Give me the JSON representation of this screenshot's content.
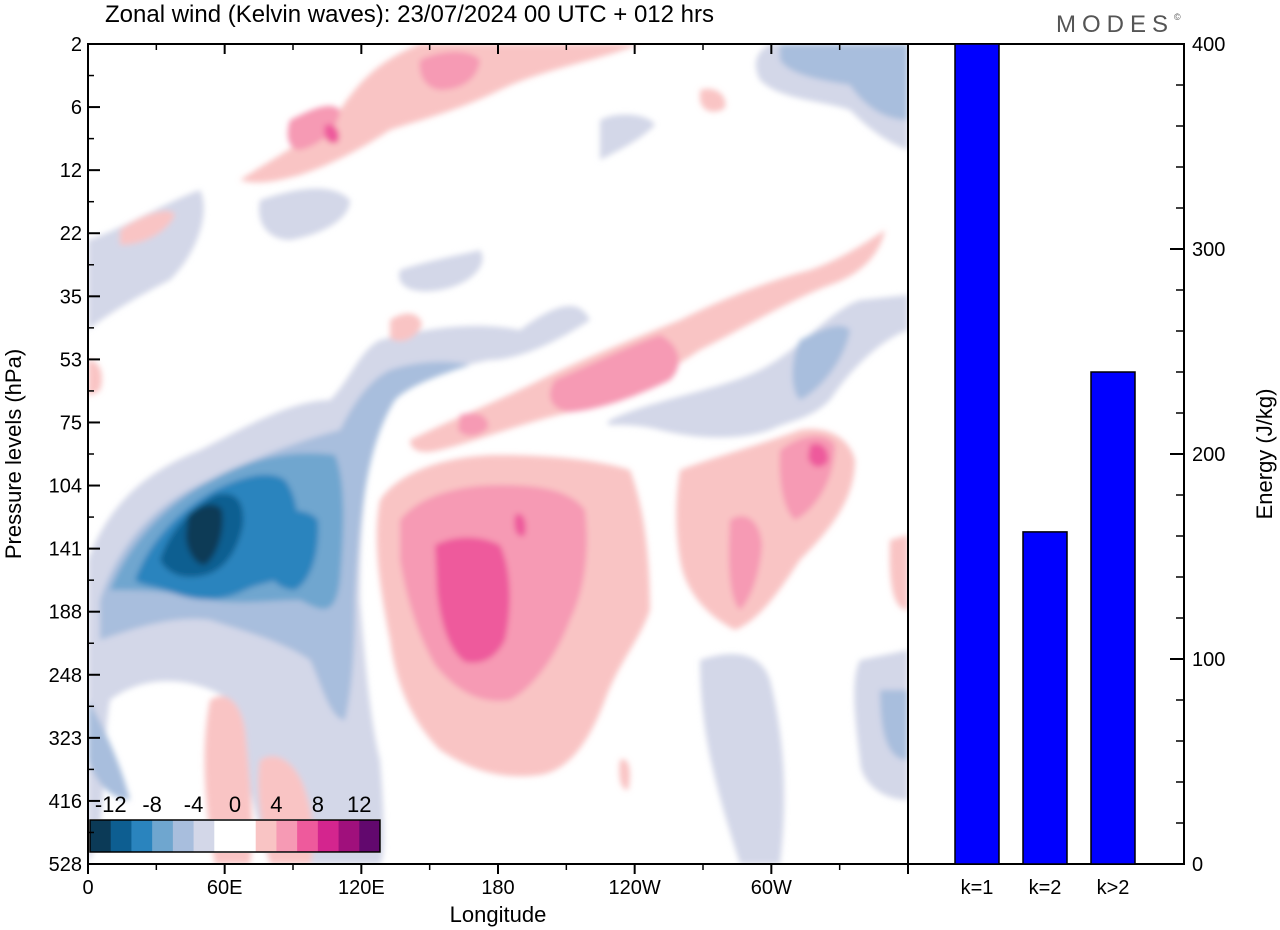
{
  "title": "Zonal wind (Kelvin waves):  23/07/2024  00 UTC  + 012 hrs",
  "brand": "MODES",
  "brand_mark": "©",
  "chart_data": [
    {
      "type": "heatmap",
      "title": "Zonal wind (Kelvin waves):  23/07/2024  00 UTC  + 012 hrs",
      "xlabel": "Longitude",
      "ylabel": "Pressure levels (hPa)",
      "x_ticks": [
        {
          "label": "0",
          "lon": 0
        },
        {
          "label": "60E",
          "lon": 60
        },
        {
          "label": "120E",
          "lon": 120
        },
        {
          "label": "180",
          "lon": 180
        },
        {
          "label": "120W",
          "lon": 240
        },
        {
          "label": "60W",
          "lon": 300
        }
      ],
      "xlim": [
        0,
        360
      ],
      "y_ticks": [
        "2",
        "6",
        "12",
        "22",
        "35",
        "53",
        "75",
        "104",
        "141",
        "188",
        "248",
        "323",
        "416",
        "528"
      ],
      "colorbar": {
        "labels": [
          "-12",
          "-8",
          "-4",
          "0",
          "4",
          "8",
          "12"
        ],
        "colors": [
          "#0b3a57",
          "#0d5e91",
          "#2a84be",
          "#6fa6cf",
          "#a8bedd",
          "#d3d7e8",
          "#ffffff",
          "#ffffff",
          "#f9c4c4",
          "#f69ab4",
          "#ee5a9c",
          "#d4258e",
          "#a0107c",
          "#62086e"
        ]
      },
      "features": [
        {
          "sign": "negative",
          "level": 4,
          "lon": 40,
          "level_name": "141"
        },
        {
          "sign": "negative",
          "level": 3,
          "lon": 90,
          "level_name": "141"
        },
        {
          "sign": "positive",
          "level": 3,
          "lon": 165,
          "level_name": "188"
        },
        {
          "sign": "positive",
          "level": 2,
          "lon": 235,
          "level_name": "53"
        },
        {
          "sign": "positive",
          "level": 2,
          "lon": 320,
          "level_name": "104"
        }
      ]
    },
    {
      "type": "bar",
      "categories": [
        "k=1",
        "k=2",
        "k>2"
      ],
      "values": [
        400,
        162,
        240
      ],
      "ylabel": "Energy (J/kg)",
      "ylim": [
        0,
        400
      ],
      "y_ticks": [
        0,
        100,
        200,
        300,
        400
      ],
      "bar_color": "#0000ff"
    }
  ]
}
